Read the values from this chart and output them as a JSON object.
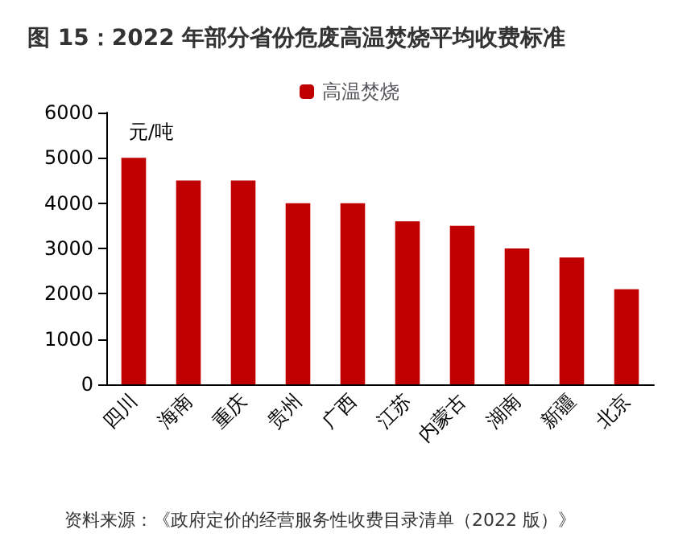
{
  "chart_data": {
    "type": "bar",
    "title": "图 15：2022 年部分省份危废高温焚烧平均收费标准",
    "ylabel": "元/吨",
    "categories": [
      "四川",
      "海南",
      "重庆",
      "贵州",
      "广西",
      "江苏",
      "内蒙古",
      "湖南",
      "新疆",
      "北京"
    ],
    "series": [
      {
        "name": "高温焚烧",
        "color": "#c00000",
        "values": [
          5000,
          4500,
          4500,
          4000,
          4000,
          3600,
          3500,
          3000,
          2800,
          2100
        ]
      }
    ],
    "ylim": [
      0,
      6000
    ],
    "yticks": [
      0,
      1000,
      2000,
      3000,
      4000,
      5000,
      6000
    ],
    "grid": false,
    "legend": "top",
    "annotations": [
      "资料来源：《政府定价的经营服务性收费目录清单（2022 版）》"
    ]
  }
}
